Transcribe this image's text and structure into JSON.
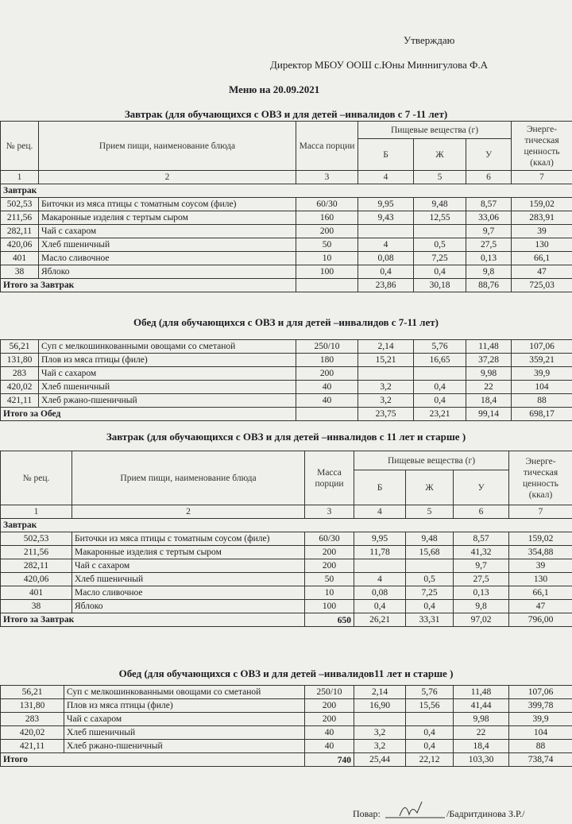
{
  "header": {
    "approve": "Утверждаю",
    "director": "Директор МБОУ ООШ с.Юны Миннигулова Ф.А",
    "menu_title": "Меню на 20.09.2021"
  },
  "sections": [
    {
      "title": "Завтрак (для обучающихся  с ОВЗ и для детей –инвалидов с 7 -11 лет)",
      "header": {
        "n": "№ рец.",
        "name": "Прием пищи, наименование блюда",
        "mass": "Масса порции",
        "nutrients": "Пищевые вещества (г)",
        "b": "Б",
        "zh": "Ж",
        "u": "У",
        "energy": "Энерге-тическая ценность (ккал)"
      },
      "col_numbers": [
        "1",
        "2",
        "3",
        "4",
        "5",
        "6",
        "7"
      ],
      "group": "Завтрак",
      "rows": [
        [
          "502,53",
          "Биточки из мяса птицы с томатным соусом (филе)",
          "60/30",
          "9,95",
          "9,48",
          "8,57",
          "159,02"
        ],
        [
          "211,56",
          "Макаронные изделия с тертым сыром",
          "160",
          "9,43",
          "12,55",
          "33,06",
          "283,91"
        ],
        [
          "282,11",
          "Чай с сахаром",
          "200",
          null,
          null,
          "9,7",
          "39"
        ],
        [
          "420,06",
          "Хлеб пшеничный",
          "50",
          "4",
          "0,5",
          "27,5",
          "130"
        ],
        [
          "401",
          "Масло сливочное",
          "10",
          "0,08",
          "7,25",
          "0,13",
          "66,1"
        ],
        [
          "38",
          "Яблоко",
          "100",
          "0,4",
          "0,4",
          "9,8",
          "47"
        ]
      ],
      "total": {
        "label": "Итого за Завтрак",
        "values": [
          null,
          "23,86",
          "30,18",
          "88,76",
          "725,03"
        ]
      }
    },
    {
      "title": "Обед (для обучающихся  с ОВЗ и для детей –инвалидов с 7-11 лет)",
      "rows": [
        [
          "56,21",
          "Суп с мелкошинкованными овощами со сметаной",
          "250/10",
          "2,14",
          "5,76",
          "11,48",
          "107,06"
        ],
        [
          "131,80",
          "Плов из мяса птицы (филе)",
          "180",
          "15,21",
          "16,65",
          "37,28",
          "359,21"
        ],
        [
          "283",
          "Чай с сахаром",
          "200",
          null,
          null,
          "9,98",
          "39,9"
        ],
        [
          "420,02",
          "Хлеб пшеничный",
          "40",
          "3,2",
          "0,4",
          "22",
          "104"
        ],
        [
          "421,11",
          "Хлеб ржано-пшеничный",
          "40",
          "3,2",
          "0,4",
          "18,4",
          "88"
        ]
      ],
      "total": {
        "label": "Итого за Обед",
        "values": [
          null,
          "23,75",
          "23,21",
          "99,14",
          "698,17"
        ]
      }
    },
    {
      "title": "Завтрак (для обучающихся  с ОВЗ и для детей –инвалидов с 11 лет и старше )",
      "header": {
        "n": "№ рец.",
        "name": "Прием пищи, наименование блюда",
        "mass": "Масса порции",
        "nutrients": "Пищевые вещества (г)",
        "b": "Б",
        "zh": "Ж",
        "u": "У",
        "energy": "Энерге-тическая ценность (ккал)"
      },
      "col_numbers": [
        "1",
        "2",
        "3",
        "4",
        "5",
        "6",
        "7"
      ],
      "group": "Завтрак",
      "rows": [
        [
          "502,53",
          "Биточки из мяса птицы с томатным соусом (филе)",
          "60/30",
          "9,95",
          "9,48",
          "8,57",
          "159,02"
        ],
        [
          "211,56",
          "Макаронные изделия с тертым сыром",
          "200",
          "11,78",
          "15,68",
          "41,32",
          "354,88"
        ],
        [
          "282,11",
          "Чай с сахаром",
          "200",
          null,
          null,
          "9,7",
          "39"
        ],
        [
          "420,06",
          "Хлеб пшеничный",
          "50",
          "4",
          "0,5",
          "27,5",
          "130"
        ],
        [
          "401",
          "Масло сливочное",
          "10",
          "0,08",
          "7,25",
          "0,13",
          "66,1"
        ],
        [
          "38",
          "Яблоко",
          "100",
          "0,4",
          "0,4",
          "9,8",
          "47"
        ]
      ],
      "total": {
        "label": "Итого за Завтрак",
        "values": [
          "650",
          "26,21",
          "33,31",
          "97,02",
          "796,00"
        ]
      }
    },
    {
      "title": "Обед (для обучающихся  с ОВЗ и для детей –инвалидов11 лет и старше )",
      "rows": [
        [
          "56,21",
          "Суп с мелкошинкованными овощами со сметаной",
          "250/10",
          "2,14",
          "5,76",
          "11,48",
          "107,06"
        ],
        [
          "131,80",
          "Плов из мяса птицы (филе)",
          "200",
          "16,90",
          "15,56",
          "41,44",
          "399,78"
        ],
        [
          "283",
          "Чай с сахаром",
          "200",
          null,
          null,
          "9,98",
          "39,9"
        ],
        [
          "420,02",
          "Хлеб пшеничный",
          "40",
          "3,2",
          "0,4",
          "22",
          "104"
        ],
        [
          "421,11",
          "Хлеб ржано-пшеничный",
          "40",
          "3,2",
          "0,4",
          "18,4",
          "88"
        ]
      ],
      "total": {
        "label": "Итого",
        "values": [
          "740",
          "25,44",
          "22,12",
          "103,30",
          "738,74"
        ]
      }
    }
  ],
  "footer": {
    "cook": "Повар:",
    "cook_name": "/Бадритдинова З.Р./"
  }
}
